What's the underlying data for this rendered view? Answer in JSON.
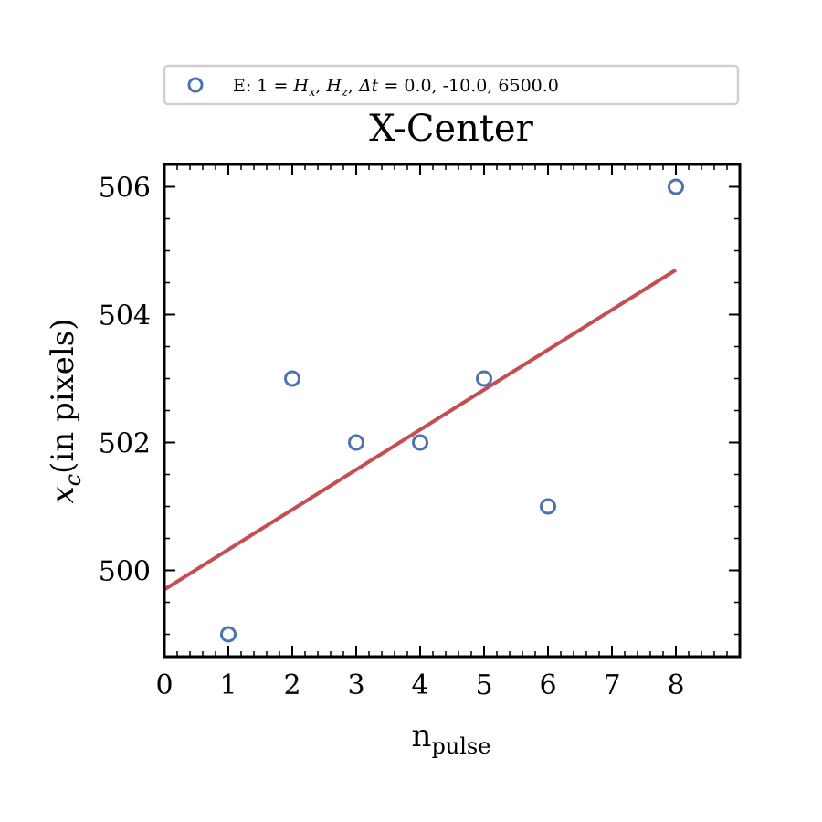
{
  "chart_data": {
    "type": "scatter",
    "title": "X-Center",
    "xlabel": "n_pulse",
    "xlabel_main": "n",
    "xlabel_sub": "pulse",
    "ylabel": "x_c(in pixels)",
    "ylabel_var": "x",
    "ylabel_sub": "c",
    "ylabel_text": "(in pixels)",
    "xlim": [
      0,
      9
    ],
    "ylim": [
      498.65,
      506.35
    ],
    "x_ticks": [
      0,
      1,
      2,
      3,
      4,
      5,
      6,
      7,
      8
    ],
    "x_tick_labels": [
      "0",
      "1",
      "2",
      "3",
      "4",
      "5",
      "6",
      "7",
      "8"
    ],
    "y_ticks": [
      500,
      502,
      504,
      506
    ],
    "y_tick_labels": [
      "500",
      "502",
      "504",
      "506"
    ],
    "grid": false,
    "legend_position": "top-center",
    "series": [
      {
        "name": "E: 1 = H_x, H_z, Δt = 0.0, -10.0, 6500.0",
        "kind": "scatter",
        "marker": "open-circle",
        "color": "#4c72b0",
        "x": [
          1,
          2,
          3,
          4,
          5,
          6,
          8
        ],
        "y": [
          499,
          503,
          502,
          502,
          503,
          501,
          506
        ]
      },
      {
        "kind": "line",
        "color": "#c44e52",
        "x": [
          0,
          8
        ],
        "y": [
          499.7,
          504.7
        ]
      }
    ],
    "legend": {
      "prefix": "E: 1 = ",
      "h": "H",
      "h_sub_x": "x",
      "h_sub_z": "z",
      "comma": ", ",
      "delta_t": "Δt",
      "equals": " = ",
      "values": " 0.0, -10.0, 6500.0"
    }
  }
}
